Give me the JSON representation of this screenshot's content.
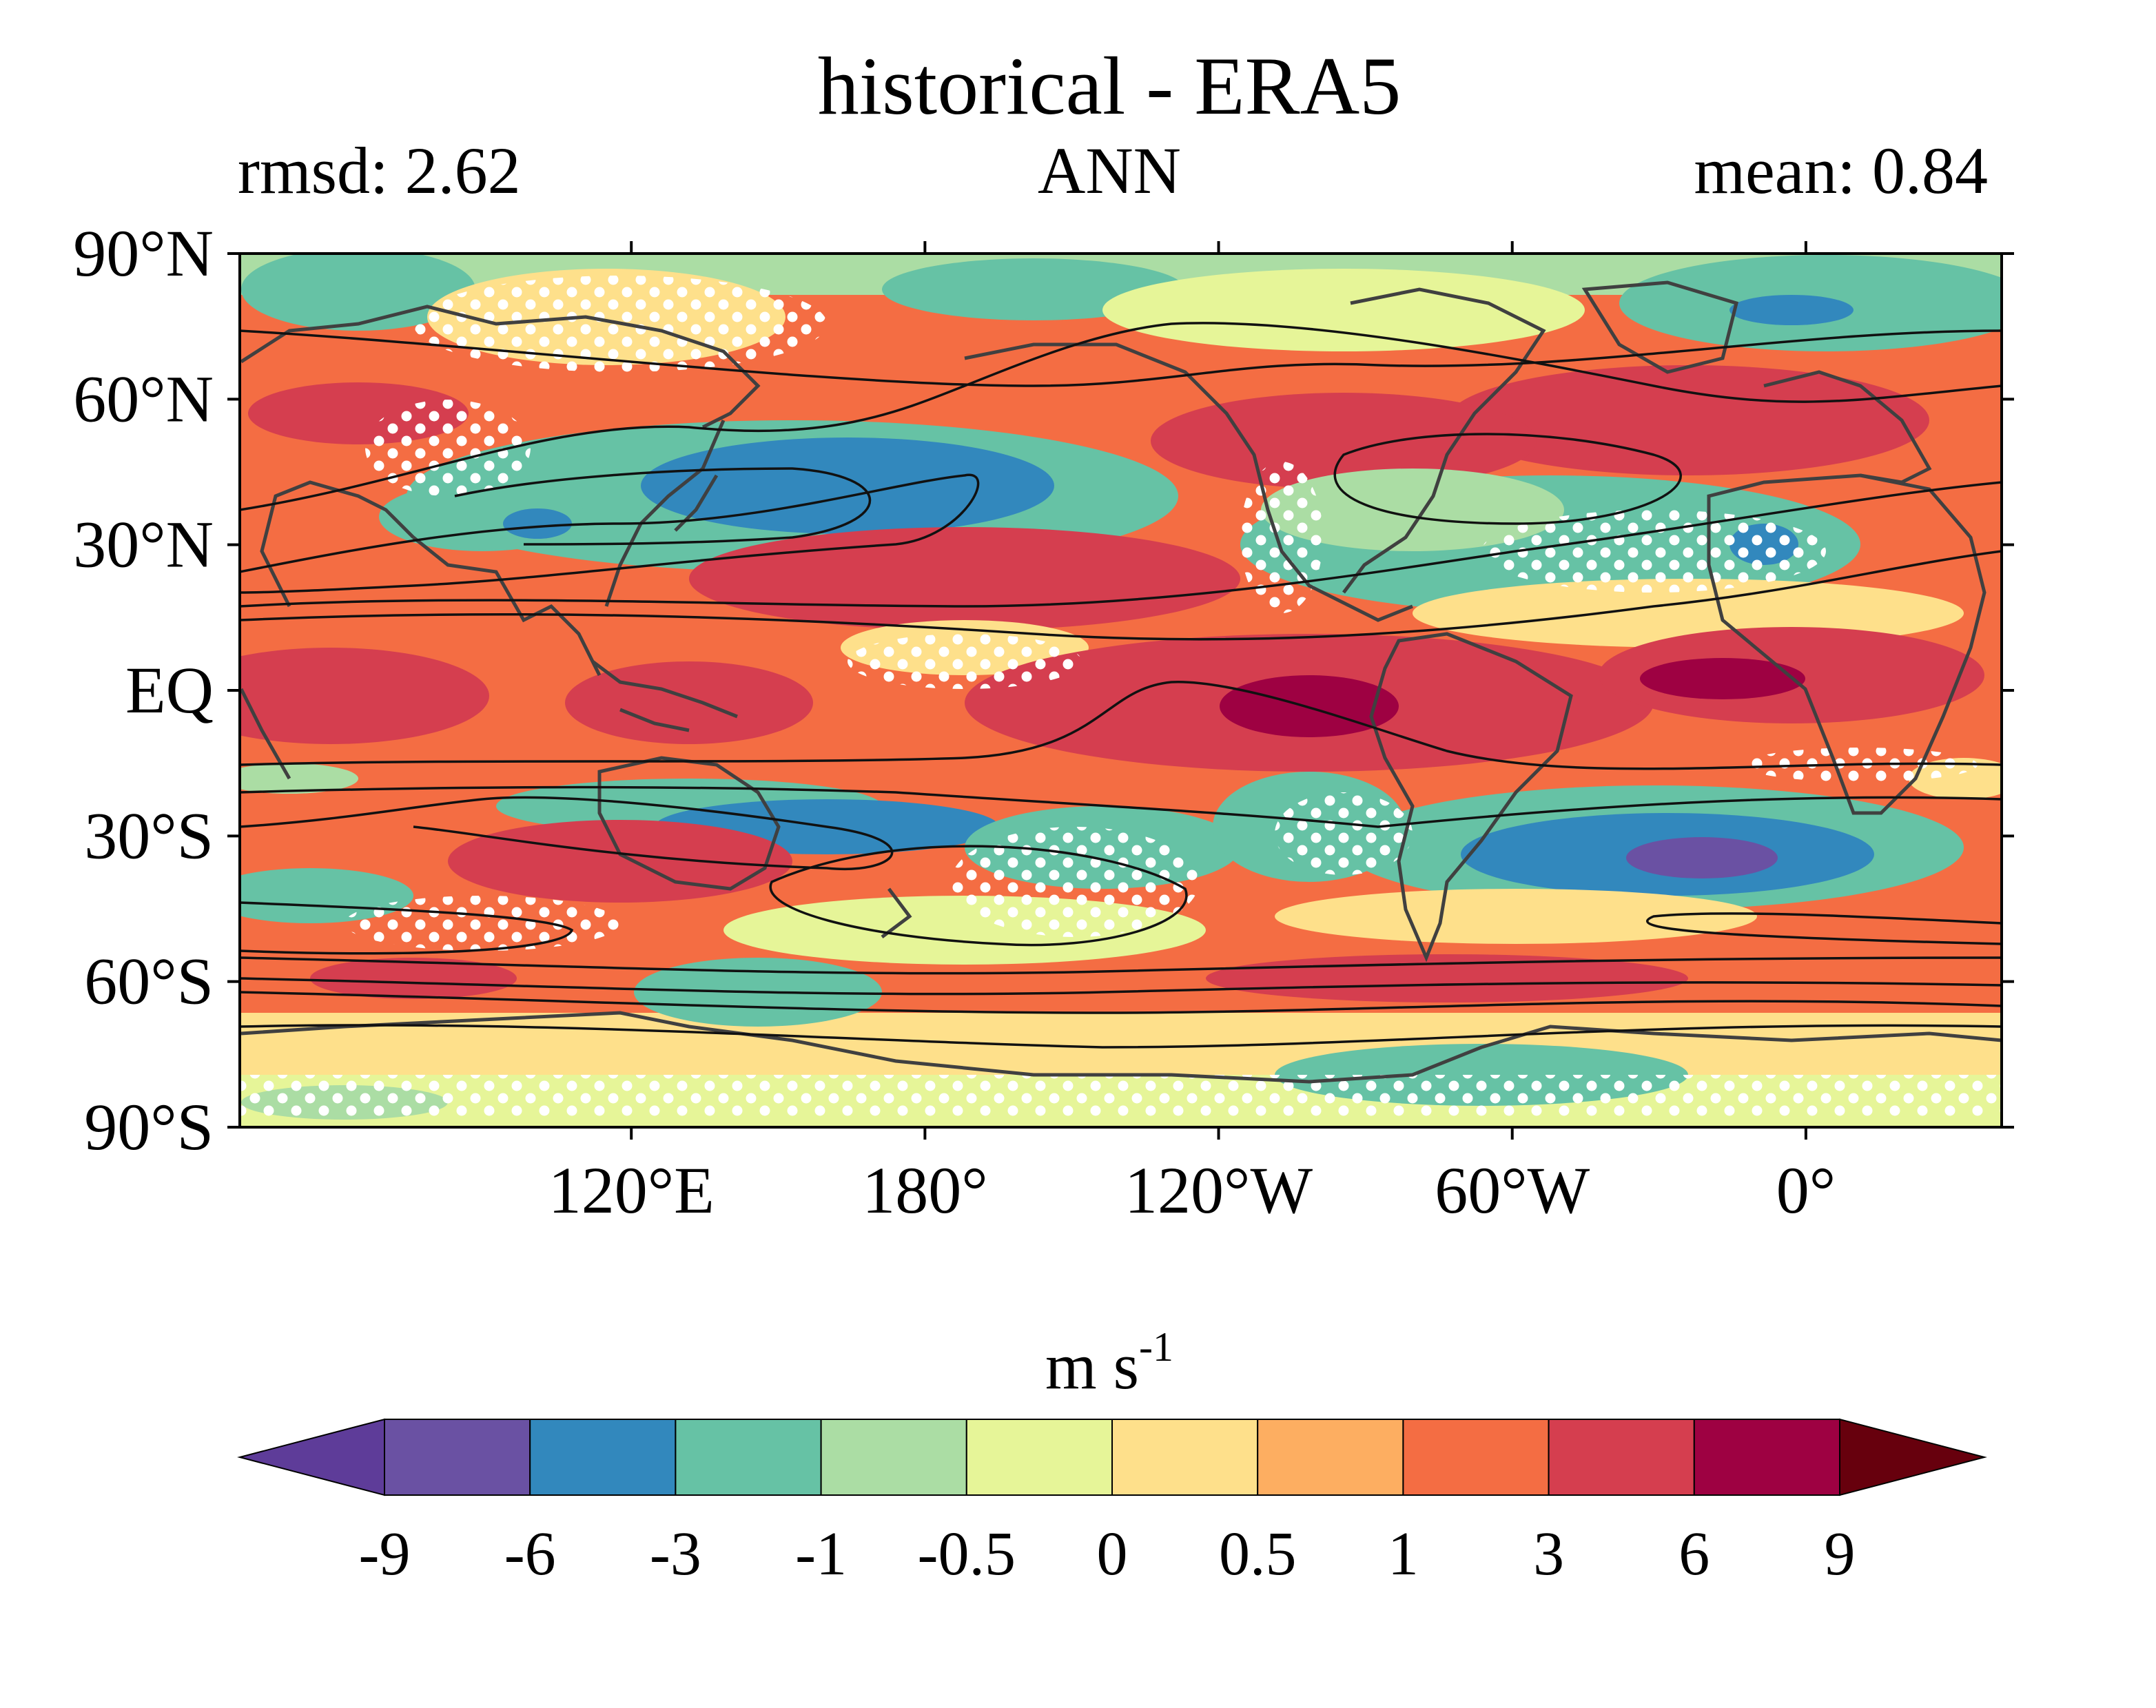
{
  "header": {
    "title": "historical - ERA5",
    "left_stat": "rmsd: 2.62",
    "season": "ANN",
    "right_stat": "mean: 0.84"
  },
  "map": {
    "lat_labels": [
      "90°N",
      "60°N",
      "30°N",
      "EQ",
      "30°S",
      "60°S",
      "90°S"
    ],
    "lat_values": [
      90,
      60,
      30,
      0,
      -30,
      -60,
      -90
    ],
    "lon_labels": [
      "120°E",
      "180°",
      "120°W",
      "60°W",
      "0°"
    ],
    "lon_values": [
      120,
      180,
      240,
      300,
      360
    ],
    "lon_range": [
      40,
      400
    ],
    "lat_range": [
      -90,
      90
    ],
    "stippling": "white dots",
    "contours": "black lines",
    "coastlines": "gray lines"
  },
  "colorbar": {
    "units_base": "m s",
    "units_exp": "-1",
    "tick_labels": [
      "-9",
      "-6",
      "-3",
      "-1",
      "-0.5",
      "0",
      "0.5",
      "1",
      "3",
      "6",
      "9"
    ],
    "colors": [
      "#5e3c99",
      "#6a51a3",
      "#3288bd",
      "#66c2a5",
      "#abdda4",
      "#e6f598",
      "#fee08b",
      "#fdae61",
      "#f46d43",
      "#d53e4f",
      "#9e0142",
      "#67000d"
    ],
    "extend": "both"
  }
}
